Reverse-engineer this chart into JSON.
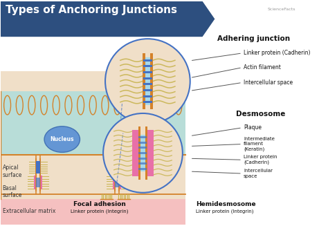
{
  "title": "Types of Anchoring Junctions",
  "title_bg": "#2d4f7f",
  "title_color": "#ffffff",
  "bg_color": "#ffffff",
  "cell_bg_teal": "#b8ddd8",
  "cell_body_bg": "#f0dfc8",
  "ecm_bg": "#f5c0c0",
  "labels": {
    "apical": "Apical\nsurface",
    "basal": "Basal\nsurface",
    "ecm": "Extracellular matrix",
    "nucleus": "Nucleus",
    "focal_adhesion": "Focal adhesion",
    "focal_linker": "Linker protein (Integrin)",
    "adhering": "Adhering junction",
    "adhering_linker": "Linker protein (Cadherin)",
    "actin": "Actin filament",
    "intercellular1": "Intercellular space",
    "desmosome": "Desmosome",
    "plaque": "Plaque",
    "intermediate": "Intermediate\nfilament\n(Keratin)",
    "desmo_linker": "Linker protein\n(Cadherin)",
    "intercellular2": "Intercellular\nspace",
    "hemi": "Hemidesmosome",
    "hemi_linker": "Linker protein (Integrin)"
  },
  "colors": {
    "membrane": "#d4822a",
    "actin": "#c8b450",
    "cadherin_blue": "#4472c4",
    "plaque_pink": "#e870a8",
    "keratin": "#c8b450",
    "intercellular_space": "#a8d8e8",
    "nucleus_fill": "#5b8fd4",
    "nucleus_edge": "#3a6ab0",
    "circle_edge": "#4472c4",
    "teal_light": "#c8e8e0",
    "orange_membrane": "#d4822a"
  }
}
